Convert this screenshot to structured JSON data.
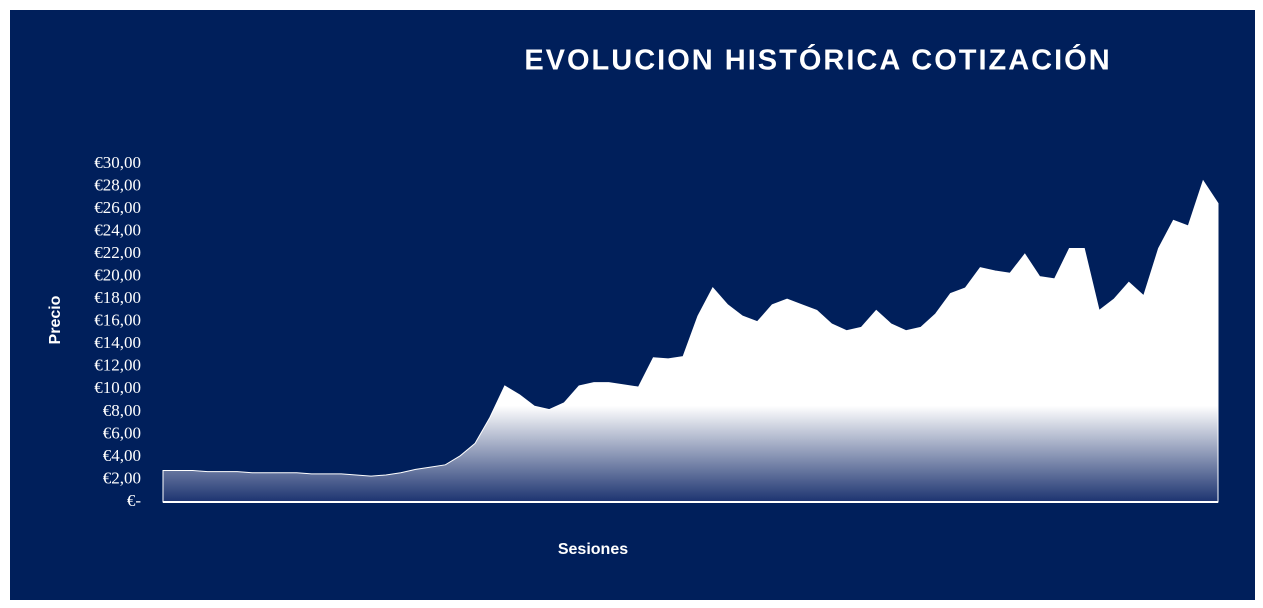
{
  "chart_data": {
    "type": "area",
    "title": "EVOLUCION  HISTÓRICA COTIZACIÓN",
    "y_label": "Precio",
    "x_label": "Sesiones",
    "color": "#ffffff",
    "ylim": [
      0,
      30
    ],
    "yticks": [
      {
        "value": 0,
        "label": "€-"
      },
      {
        "value": 2,
        "label": "€2,00"
      },
      {
        "value": 4,
        "label": "€4,00"
      },
      {
        "value": 6,
        "label": "€6,00"
      },
      {
        "value": 8,
        "label": "€8,00"
      },
      {
        "value": 10,
        "label": "€10,00"
      },
      {
        "value": 12,
        "label": "€12,00"
      },
      {
        "value": 14,
        "label": "€14,00"
      },
      {
        "value": 16,
        "label": "€16,00"
      },
      {
        "value": 18,
        "label": "€18,00"
      },
      {
        "value": 20,
        "label": "€20,00"
      },
      {
        "value": 22,
        "label": "€22,00"
      },
      {
        "value": 24,
        "label": "€24,00"
      },
      {
        "value": 26,
        "label": "€26,00"
      },
      {
        "value": 28,
        "label": "€28,00"
      },
      {
        "value": 30,
        "label": "€30,00"
      }
    ],
    "values": [
      2.8,
      2.8,
      2.8,
      2.7,
      2.7,
      2.7,
      2.6,
      2.6,
      2.6,
      2.6,
      2.5,
      2.5,
      2.5,
      2.4,
      2.3,
      2.4,
      2.6,
      2.9,
      3.1,
      3.3,
      4.1,
      5.2,
      7.5,
      10.3,
      9.5,
      8.5,
      8.2,
      8.8,
      10.3,
      10.6,
      10.6,
      10.4,
      10.2,
      12.8,
      12.7,
      12.9,
      16.5,
      19,
      17.5,
      16.5,
      16,
      17.5,
      18,
      17.5,
      17,
      15.8,
      15.2,
      15.5,
      17,
      15.8,
      15.2,
      15.5,
      16.7,
      18.5,
      19,
      20.8,
      20.5,
      20.3,
      22,
      20,
      19.8,
      22.5,
      22.5,
      17,
      18,
      19.5,
      18.3,
      22.5,
      25,
      24.5,
      28.5,
      26.5
    ]
  }
}
